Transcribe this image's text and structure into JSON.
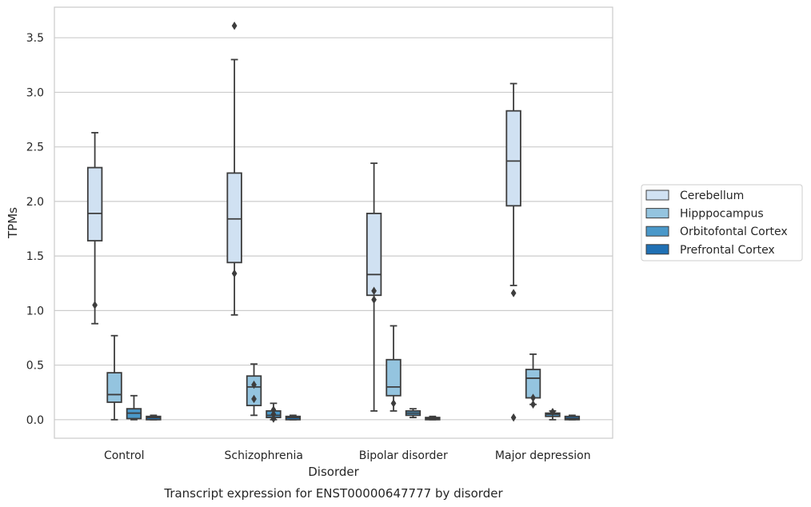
{
  "chart_data": {
    "type": "box",
    "xlabel": "Disorder",
    "ylabel": "TPMs",
    "caption": "Transcript expression for ENST00000647777 by disorder",
    "categories": [
      "Control",
      "Schizophrenia",
      "Bipolar disorder",
      "Major depression"
    ],
    "ylim": [
      -0.17,
      3.78
    ],
    "yticks": [
      0.0,
      0.5,
      1.0,
      1.5,
      2.0,
      2.5,
      3.0,
      3.5
    ],
    "ytick_labels": [
      "0.0",
      "0.5",
      "1.0",
      "1.5",
      "2.0",
      "2.5",
      "3.0",
      "3.5"
    ],
    "grid": "horizontal",
    "legend_position": "right",
    "series": [
      {
        "name": "Cerebellum",
        "color": "#d0e1f2",
        "boxes": [
          {
            "whisker_low": 0.88,
            "q1": 1.64,
            "median": 1.89,
            "q3": 2.31,
            "whisker_high": 2.63,
            "outliers": [
              1.05
            ]
          },
          {
            "whisker_low": 0.96,
            "q1": 1.44,
            "median": 1.84,
            "q3": 2.26,
            "whisker_high": 3.3,
            "outliers": [
              3.61,
              1.34
            ]
          },
          {
            "whisker_low": 0.08,
            "q1": 1.14,
            "median": 1.33,
            "q3": 1.89,
            "whisker_high": 2.35,
            "outliers": [
              1.18,
              1.1
            ]
          },
          {
            "whisker_low": 1.23,
            "q1": 1.96,
            "median": 2.37,
            "q3": 2.83,
            "whisker_high": 3.08,
            "outliers": [
              1.16,
              0.02
            ]
          }
        ]
      },
      {
        "name": "Hipppocampus",
        "color": "#94c4df",
        "boxes": [
          {
            "whisker_low": 0.0,
            "q1": 0.16,
            "median": 0.23,
            "q3": 0.43,
            "whisker_high": 0.77,
            "outliers": []
          },
          {
            "whisker_low": 0.04,
            "q1": 0.13,
            "median": 0.3,
            "q3": 0.4,
            "whisker_high": 0.51,
            "outliers": [
              0.32,
              0.19
            ]
          },
          {
            "whisker_low": 0.08,
            "q1": 0.22,
            "median": 0.3,
            "q3": 0.55,
            "whisker_high": 0.86,
            "outliers": [
              0.15
            ]
          },
          {
            "whisker_low": 0.14,
            "q1": 0.2,
            "median": 0.38,
            "q3": 0.46,
            "whisker_high": 0.6,
            "outliers": [
              0.2,
              0.14
            ]
          }
        ]
      },
      {
        "name": "Orbitofontal Cortex",
        "color": "#4a98c9",
        "boxes": [
          {
            "whisker_low": 0.0,
            "q1": 0.01,
            "median": 0.06,
            "q3": 0.1,
            "whisker_high": 0.22,
            "outliers": []
          },
          {
            "whisker_low": 0.0,
            "q1": 0.02,
            "median": 0.04,
            "q3": 0.08,
            "whisker_high": 0.15,
            "outliers": [
              0.09,
              0.05,
              0.01
            ]
          },
          {
            "whisker_low": 0.02,
            "q1": 0.04,
            "median": 0.06,
            "q3": 0.08,
            "whisker_high": 0.1,
            "outliers": []
          },
          {
            "whisker_low": 0.0,
            "q1": 0.03,
            "median": 0.05,
            "q3": 0.06,
            "whisker_high": 0.08,
            "outliers": [
              0.07
            ]
          }
        ]
      },
      {
        "name": "Prefrontal Cortex",
        "color": "#2070b4",
        "boxes": [
          {
            "whisker_low": 0.0,
            "q1": 0.0,
            "median": 0.02,
            "q3": 0.03,
            "whisker_high": 0.04,
            "outliers": []
          },
          {
            "whisker_low": 0.0,
            "q1": 0.0,
            "median": 0.02,
            "q3": 0.03,
            "whisker_high": 0.04,
            "outliers": []
          },
          {
            "whisker_low": 0.0,
            "q1": 0.0,
            "median": 0.01,
            "q3": 0.02,
            "whisker_high": 0.03,
            "outliers": []
          },
          {
            "whisker_low": 0.0,
            "q1": 0.0,
            "median": 0.01,
            "q3": 0.03,
            "whisker_high": 0.04,
            "outliers": []
          }
        ]
      }
    ]
  }
}
